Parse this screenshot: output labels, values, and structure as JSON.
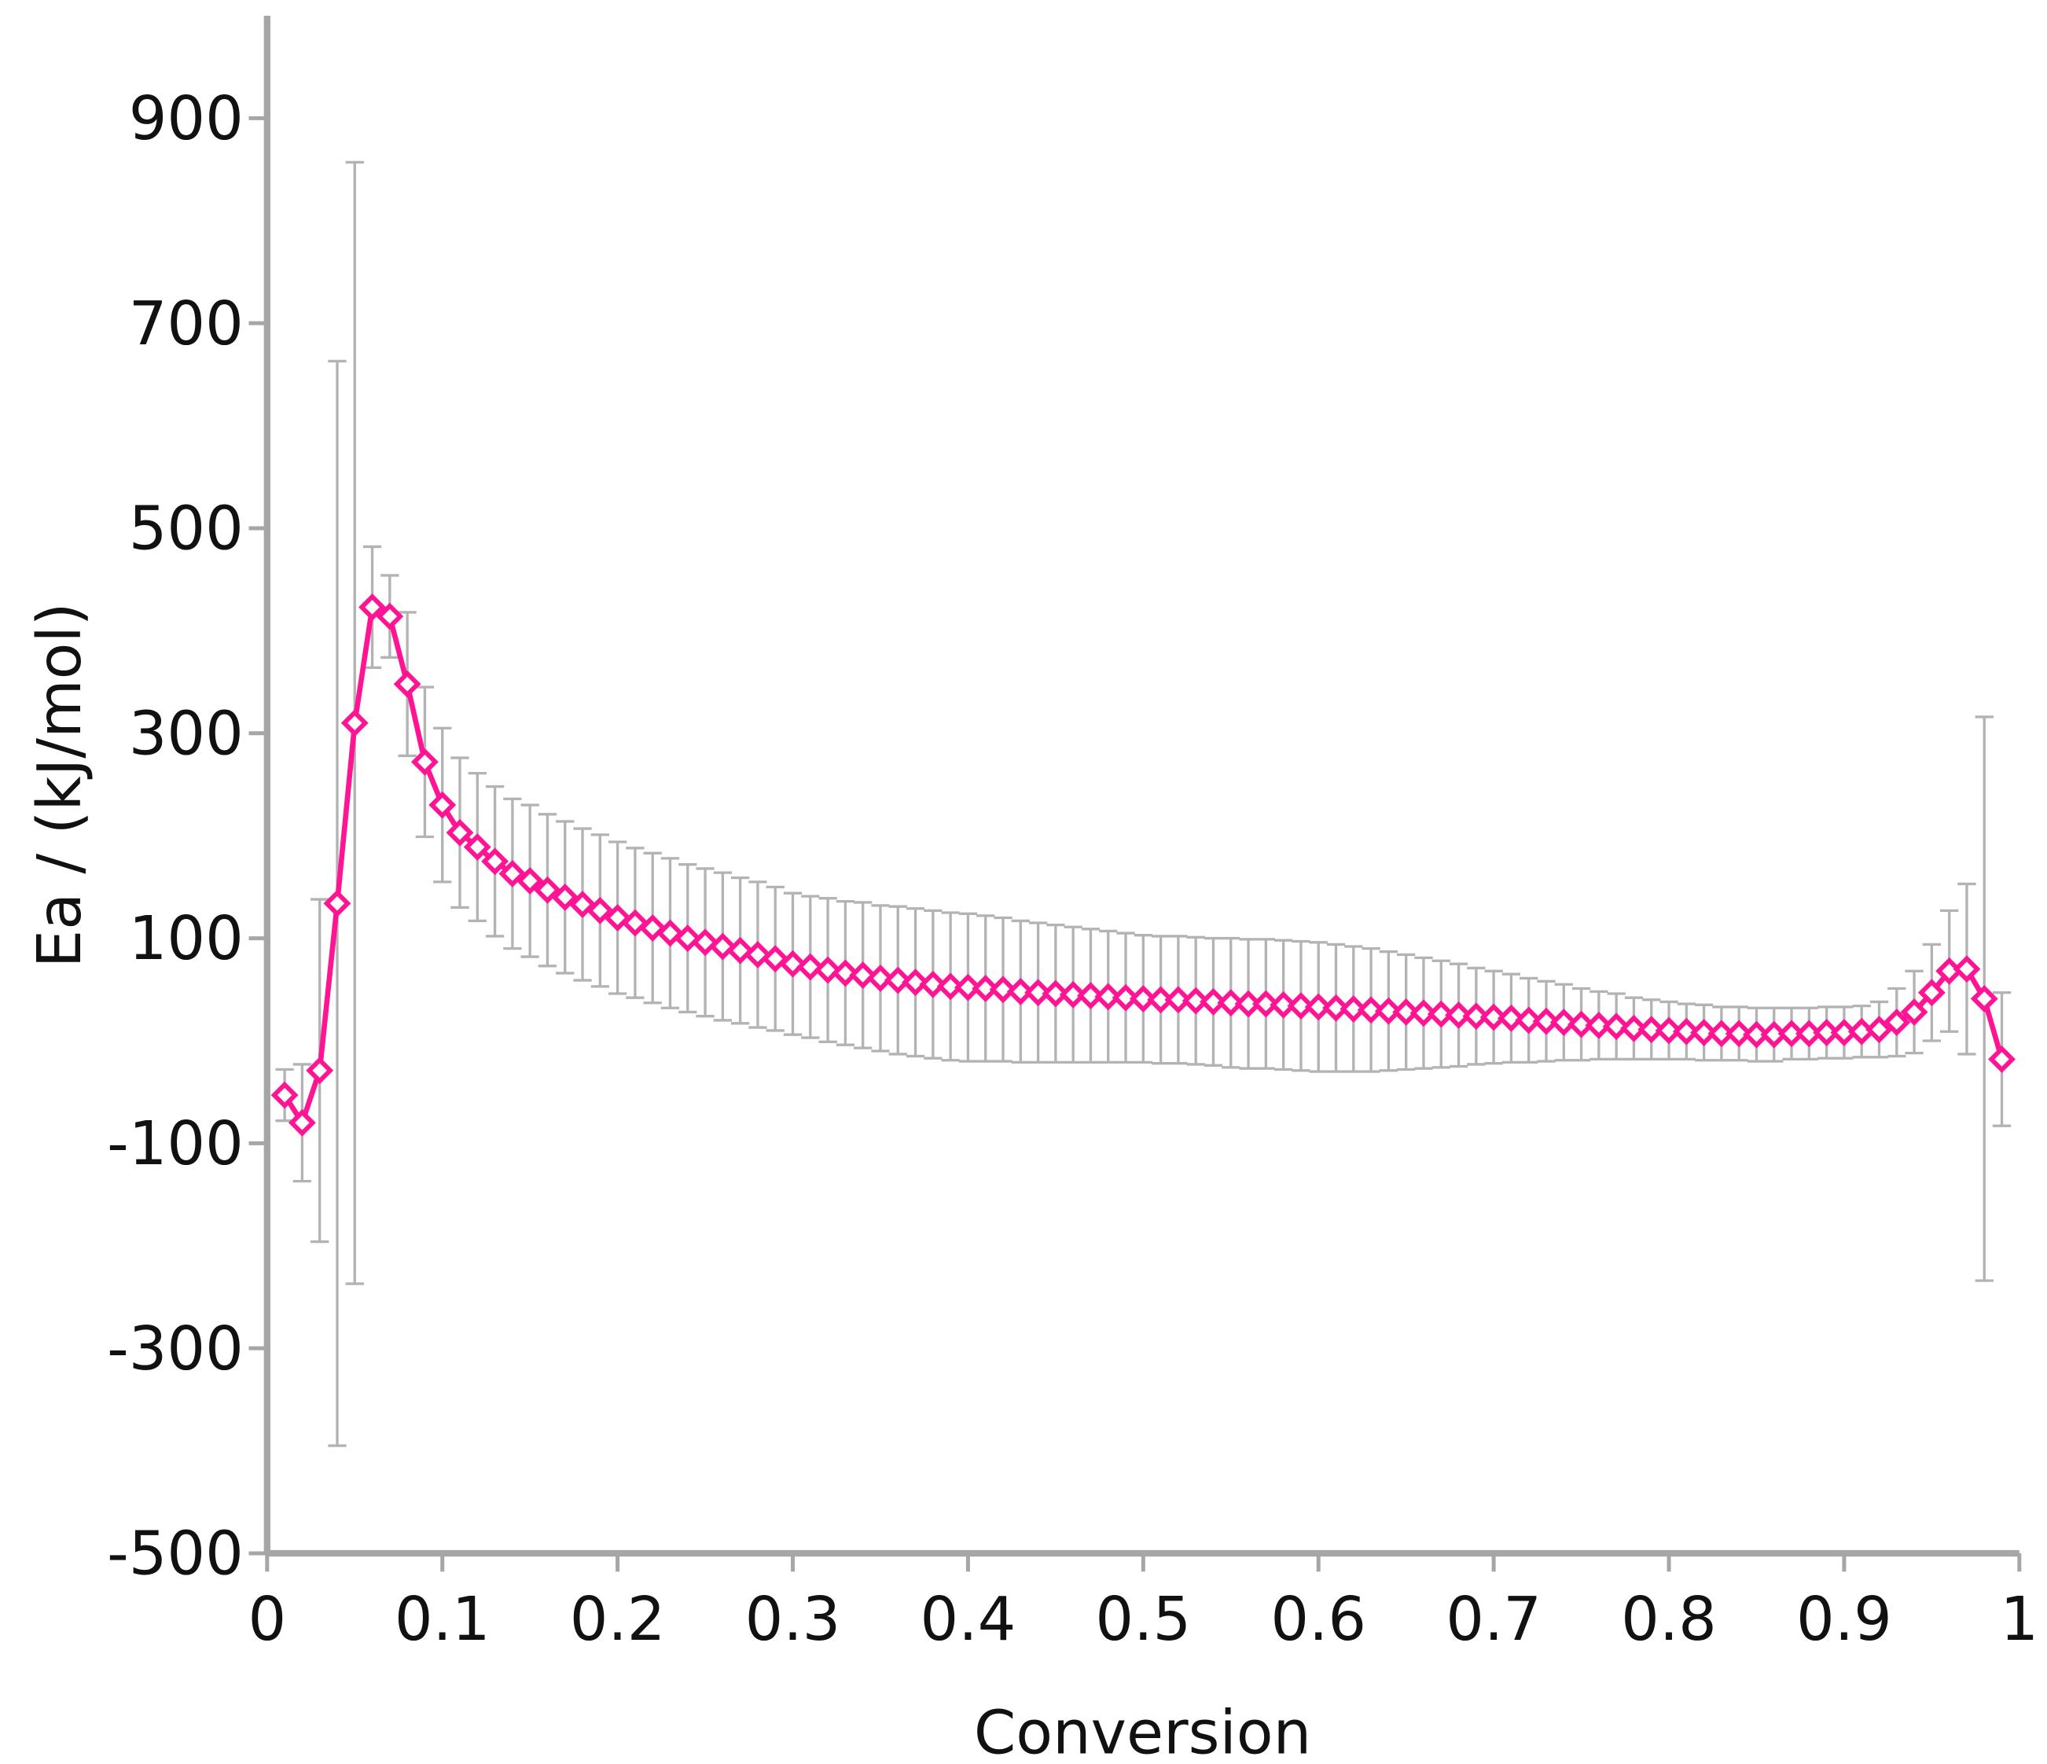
{
  "chart_data": {
    "type": "line",
    "x_label": "Conversion",
    "y_label": "Ea / (kJ/mol)",
    "xlim": [
      0,
      1
    ],
    "ylim": [
      -500,
      1000
    ],
    "xticks": [
      0,
      0.1,
      0.2,
      0.3,
      0.4,
      0.5,
      0.6,
      0.7,
      0.8,
      0.9,
      1
    ],
    "yticks": [
      -500,
      -300,
      -100,
      100,
      300,
      500,
      700,
      900
    ],
    "grid": false,
    "color": "#ff1493",
    "error_color": "#b3b3b3",
    "marker": "diamond",
    "x": [
      0.01,
      0.02,
      0.03,
      0.04,
      0.05,
      0.06,
      0.07,
      0.08,
      0.09,
      0.1,
      0.11,
      0.12,
      0.13,
      0.14,
      0.15,
      0.16,
      0.17,
      0.18,
      0.19,
      0.2,
      0.21,
      0.22,
      0.23,
      0.24,
      0.25,
      0.26,
      0.27,
      0.28,
      0.29,
      0.3,
      0.31,
      0.32,
      0.33,
      0.34,
      0.35,
      0.36,
      0.37,
      0.38,
      0.39,
      0.4,
      0.41,
      0.42,
      0.43,
      0.44,
      0.45,
      0.46,
      0.47,
      0.48,
      0.49,
      0.5,
      0.51,
      0.52,
      0.53,
      0.54,
      0.55,
      0.56,
      0.57,
      0.58,
      0.59,
      0.6,
      0.61,
      0.62,
      0.63,
      0.64,
      0.65,
      0.66,
      0.67,
      0.68,
      0.69,
      0.7,
      0.71,
      0.72,
      0.73,
      0.74,
      0.75,
      0.76,
      0.77,
      0.78,
      0.79,
      0.8,
      0.81,
      0.82,
      0.83,
      0.84,
      0.85,
      0.86,
      0.87,
      0.88,
      0.89,
      0.9,
      0.91,
      0.92,
      0.93,
      0.94,
      0.95,
      0.96,
      0.97,
      0.98,
      0.99
    ],
    "values": [
      -53,
      -80,
      -29,
      134,
      310,
      423,
      414,
      348,
      272,
      230,
      203,
      189,
      175,
      163,
      156,
      147,
      140,
      133,
      127,
      120,
      115,
      110,
      105,
      100,
      96,
      92,
      88,
      84,
      80,
      75,
      72,
      69,
      66,
      64,
      61,
      59,
      57,
      55,
      53,
      52,
      51,
      50,
      48,
      47,
      46,
      45,
      44,
      43,
      42,
      41,
      40,
      40,
      39,
      38,
      37,
      36,
      36,
      35,
      34,
      33,
      32,
      31,
      30,
      29,
      28,
      27,
      26,
      25,
      24,
      23,
      22,
      20,
      19,
      18,
      16,
      15,
      14,
      12,
      11,
      10,
      9,
      8,
      7,
      7,
      6,
      6,
      7,
      7,
      8,
      8,
      9,
      11,
      18,
      28,
      47,
      68,
      70,
      41,
      -18
    ],
    "errors": [
      25,
      57,
      167,
      529,
      547,
      59,
      40,
      70,
      73,
      75,
      73,
      72,
      73,
      73,
      74,
      74,
      74,
      74,
      74,
      74,
      73,
      73,
      73,
      72,
      72,
      72,
      71,
      71,
      70,
      69,
      69,
      70,
      70,
      71,
      71,
      72,
      72,
      72,
      72,
      72,
      71,
      70,
      69,
      68,
      67,
      66,
      65,
      64,
      63,
      62,
      62,
      62,
      62,
      62,
      63,
      63,
      63,
      63,
      63,
      63,
      62,
      61,
      60,
      58,
      56,
      54,
      52,
      50,
      47,
      45,
      43,
      41,
      39,
      37,
      35,
      33,
      32,
      30,
      29,
      28,
      27,
      27,
      26,
      26,
      26,
      26,
      25,
      25,
      25,
      25,
      25,
      27,
      33,
      40,
      47,
      59,
      83,
      275,
      65
    ]
  }
}
